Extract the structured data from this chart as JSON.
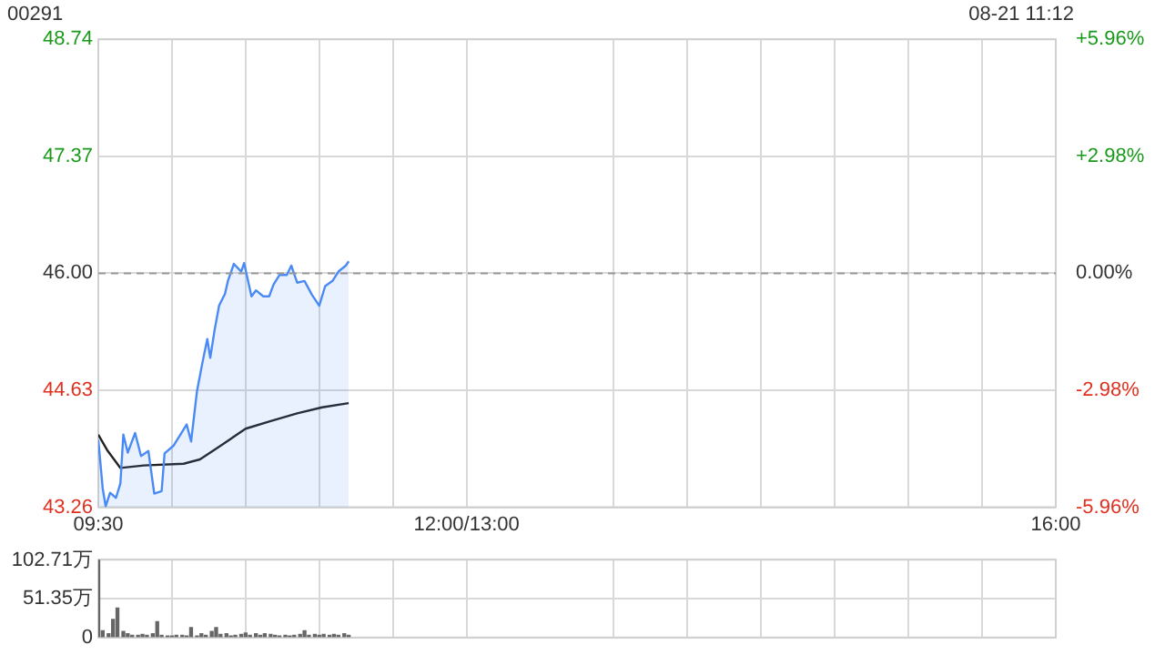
{
  "chart_data": [
    {
      "type": "area",
      "title": "00291",
      "subtitle": "08-21 11:12",
      "xlim": [
        9.5,
        16
      ],
      "xticks": [
        {
          "value": 9.5,
          "label": "09:30"
        },
        {
          "value": 10,
          "label": null
        },
        {
          "value": 10.5,
          "label": null
        },
        {
          "value": 11,
          "label": null
        },
        {
          "value": 11.5,
          "label": null
        },
        {
          "value": 12,
          "label": "12:00/13:00"
        },
        {
          "value": 13,
          "label": null
        },
        {
          "value": 13.5,
          "label": null
        },
        {
          "value": 14,
          "label": null
        },
        {
          "value": 14.5,
          "label": null
        },
        {
          "value": 15,
          "label": null
        },
        {
          "value": 15.5,
          "label": null
        },
        {
          "value": 16,
          "label": "16:00"
        }
      ],
      "ylim": [
        43.26,
        48.74
      ],
      "yticks": [
        43.26,
        44.63,
        {
          "value": 46.0,
          "label": "46.00"
        },
        47.37,
        48.74
      ],
      "y2lim": [
        -5.96,
        5.96
      ],
      "y2ticks": [
        {
          "value": -5.96,
          "label": "-5.96%"
        },
        {
          "value": -2.98,
          "label": "-2.98%"
        },
        {
          "value": 0,
          "label": "0.00%"
        },
        {
          "value": 2.98,
          "label": "+2.98%"
        },
        {
          "value": 5.96,
          "label": "+5.96%"
        }
      ],
      "grid": true,
      "legend": false,
      "marker": "none",
      "ref_lines": [
        {
          "axis": "y",
          "value": 46.0,
          "color": "#999999",
          "line_style": "dashed"
        }
      ],
      "series": [
        {
          "type": "area",
          "color": "#4a8af4",
          "x": [
            9.5,
            9.53,
            9.55,
            9.58,
            9.62,
            9.65,
            9.67,
            9.7,
            9.75,
            9.79,
            9.84,
            9.88,
            9.93,
            9.95,
            10.01,
            10.1,
            10.13,
            10.17,
            10.21,
            10.24,
            10.26,
            10.29,
            10.32,
            10.36,
            10.38,
            10.42,
            10.47,
            10.49,
            10.54,
            10.57,
            10.62,
            10.66,
            10.69,
            10.73,
            10.78,
            10.81,
            10.85,
            10.9,
            10.95,
            11,
            11.04,
            11.09,
            11.13,
            11.18,
            11.2
          ],
          "values": [
            44.05,
            43.48,
            43.27,
            43.43,
            43.37,
            43.54,
            44.11,
            43.9,
            44.13,
            43.86,
            43.92,
            43.42,
            43.45,
            43.89,
            43.98,
            44.23,
            44.03,
            44.62,
            44.98,
            45.23,
            45.01,
            45.34,
            45.62,
            45.76,
            45.91,
            46.11,
            46.02,
            46.12,
            45.73,
            45.8,
            45.73,
            45.73,
            45.87,
            45.98,
            45.98,
            46.09,
            45.89,
            45.91,
            45.75,
            45.62,
            45.85,
            45.91,
            46.02,
            46.09,
            46.14
          ]
        },
        {
          "type": "line",
          "color": "#222222",
          "x": [
            9.5,
            9.56,
            9.65,
            9.81,
            10.08,
            10.19,
            10.33,
            10.5,
            10.67,
            10.85,
            11.02,
            11.2
          ],
          "values": [
            44.11,
            43.93,
            43.72,
            43.75,
            43.77,
            43.82,
            43.98,
            44.18,
            44.27,
            44.36,
            44.43,
            44.48
          ]
        }
      ]
    },
    {
      "type": "bar",
      "xlim": [
        9.5,
        16
      ],
      "xticks": [
        {
          "value": 9.5,
          "label": null
        },
        {
          "value": 10,
          "label": null
        },
        {
          "value": 10.5,
          "label": null
        },
        {
          "value": 11,
          "label": null
        },
        {
          "value": 11.5,
          "label": null
        },
        {
          "value": 12,
          "label": null
        },
        {
          "value": 13,
          "label": null
        },
        {
          "value": 13.5,
          "label": null
        },
        {
          "value": 14,
          "label": null
        },
        {
          "value": 14.5,
          "label": null
        },
        {
          "value": 15,
          "label": null
        },
        {
          "value": 15.5,
          "label": null
        },
        {
          "value": 16,
          "label": null
        }
      ],
      "tick_labels": "y",
      "ylim": [
        0,
        103
      ],
      "yticks": [
        0,
        {
          "value": 51.35,
          "label": "51.35万"
        },
        {
          "value": 102.71,
          "label": "102.71万"
        }
      ],
      "grid": true,
      "legend": false,
      "series": [
        {
          "color": "#666666",
          "x": [
            9.5,
            9.53,
            9.57,
            9.6,
            9.63,
            9.67,
            9.7,
            9.73,
            9.77,
            9.8,
            9.83,
            9.87,
            9.9,
            9.93,
            9.97,
            10,
            10.03,
            10.07,
            10.1,
            10.13,
            10.17,
            10.2,
            10.23,
            10.27,
            10.3,
            10.33,
            10.37,
            10.4,
            10.43,
            10.47,
            10.5,
            10.53,
            10.57,
            10.6,
            10.63,
            10.67,
            10.7,
            10.73,
            10.77,
            10.8,
            10.83,
            10.87,
            10.9,
            10.93,
            10.97,
            11,
            11.03,
            11.07,
            11.1,
            11.13,
            11.17,
            11.2
          ],
          "values": [
            103,
            9,
            5,
            24,
            39,
            8,
            5,
            3,
            3,
            4,
            3,
            5,
            21,
            3,
            2,
            2,
            3,
            3,
            2,
            13,
            2,
            5,
            3,
            8,
            13,
            4,
            5,
            2,
            3,
            4,
            6,
            3,
            5,
            3,
            5,
            4,
            3,
            2,
            3,
            2,
            3,
            4,
            9,
            3,
            4,
            3,
            4,
            3,
            4,
            3,
            5,
            3
          ]
        }
      ]
    }
  ]
}
